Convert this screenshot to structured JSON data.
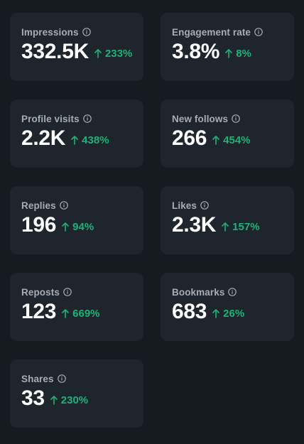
{
  "colors": {
    "background": "#161b22",
    "card": "#1f252d",
    "label": "#a6adb6",
    "value": "#ffffff",
    "positive": "#1db378"
  },
  "metrics": [
    {
      "label": "Impressions",
      "value": "332.5K",
      "change": "233%",
      "trend_icon": "arrow-up-icon"
    },
    {
      "label": "Engagement rate",
      "value": "3.8%",
      "change": "8%",
      "trend_icon": "arrow-up-icon"
    },
    {
      "label": "Profile visits",
      "value": "2.2K",
      "change": "438%",
      "trend_icon": "arrow-up-icon"
    },
    {
      "label": "New follows",
      "value": "266",
      "change": "454%",
      "trend_icon": "arrow-up-icon"
    },
    {
      "label": "Replies",
      "value": "196",
      "change": "94%",
      "trend_icon": "arrow-up-icon"
    },
    {
      "label": "Likes",
      "value": "2.3K",
      "change": "157%",
      "trend_icon": "arrow-up-icon"
    },
    {
      "label": "Reposts",
      "value": "123",
      "change": "669%",
      "trend_icon": "arrow-up-icon"
    },
    {
      "label": "Bookmarks",
      "value": "683",
      "change": "26%",
      "trend_icon": "arrow-up-icon"
    },
    {
      "label": "Shares",
      "value": "33",
      "change": "230%",
      "trend_icon": "arrow-up-icon"
    }
  ]
}
